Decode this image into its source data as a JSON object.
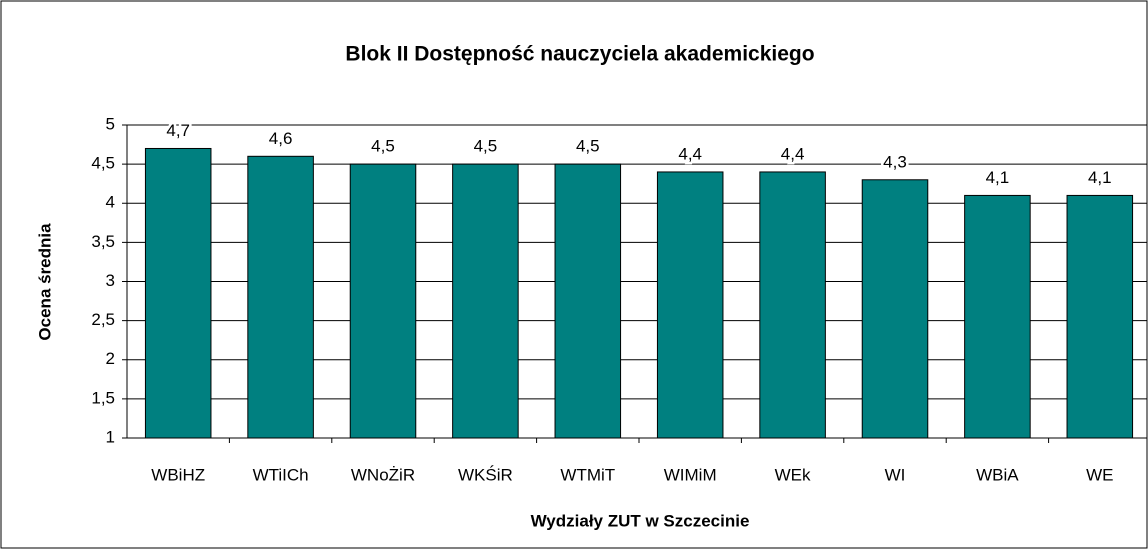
{
  "chart_data": {
    "type": "bar",
    "title": "Blok II Dostępność nauczyciela akademickiego",
    "x_label": "Wydziały ZUT w Szczecinie",
    "y_label": "Ocena średnia",
    "categories": [
      "WBiHZ",
      "WTiICh",
      "WNoŻiR",
      "WKŚiR",
      "WTMiT",
      "WIMiM",
      "WEk",
      "WI",
      "WBiA",
      "WE"
    ],
    "values": [
      4.7,
      4.6,
      4.5,
      4.5,
      4.5,
      4.4,
      4.4,
      4.3,
      4.1,
      4.1
    ],
    "value_labels": [
      "4,7",
      "4,6",
      "4,5",
      "4,5",
      "4,5",
      "4,4",
      "4,4",
      "4,3",
      "4,1",
      "4,1"
    ],
    "color": "#008080",
    "ylim": [
      1,
      5
    ],
    "yticks": [
      1,
      {
        "value": 1.5,
        "label": "1,5"
      },
      2,
      {
        "value": 2.5,
        "label": "2,5"
      },
      3,
      {
        "value": 3.5,
        "label": "3,5"
      },
      4,
      {
        "value": 4.5,
        "label": "4,5"
      },
      5
    ],
    "grid": true
  }
}
